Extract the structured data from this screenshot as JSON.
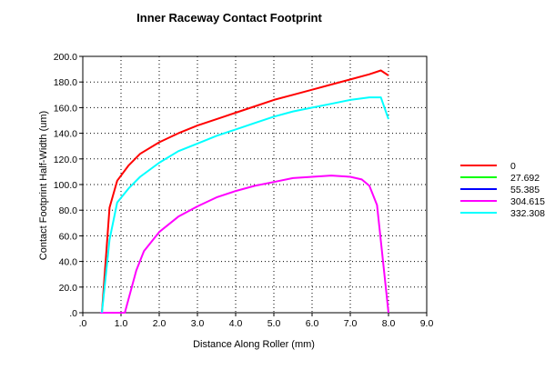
{
  "chart_data": {
    "type": "line",
    "title": "Inner Raceway Contact Footprint",
    "xlabel": "Distance Along Roller (mm)",
    "ylabel": "Contact Footprint Half-Width (um)",
    "xlim": [
      0,
      9
    ],
    "ylim": [
      0,
      200
    ],
    "xticks": [
      0,
      1,
      2,
      3,
      4,
      5,
      6,
      7,
      8,
      9
    ],
    "xtick_labels": [
      ".0",
      "1.0",
      "2.0",
      "3.0",
      "4.0",
      "5.0",
      "6.0",
      "7.0",
      "8.0",
      "9.0"
    ],
    "yticks": [
      0,
      20,
      40,
      60,
      80,
      100,
      120,
      140,
      160,
      180,
      200
    ],
    "ytick_labels": [
      ".0",
      "20.0",
      "40.0",
      "60.0",
      "80.0",
      "100.0",
      "120.0",
      "140.0",
      "160.0",
      "180.0",
      "200.0"
    ],
    "grid": true,
    "legend_position": "right",
    "series": [
      {
        "name": "0",
        "color": "#ff0000",
        "x": [
          0.5,
          0.7,
          0.9,
          1.2,
          1.5,
          2.0,
          2.5,
          3.0,
          3.5,
          4.0,
          4.5,
          5.0,
          5.5,
          6.0,
          6.5,
          7.0,
          7.5,
          7.8,
          8.0
        ],
        "y": [
          0,
          82,
          103,
          115,
          124,
          133,
          140,
          146,
          151,
          156,
          161,
          166,
          170,
          174,
          178,
          182,
          186,
          189,
          185
        ]
      },
      {
        "name": "27.692",
        "color": "#00ff00",
        "x": [],
        "y": []
      },
      {
        "name": "55.385",
        "color": "#0000ff",
        "x": [],
        "y": []
      },
      {
        "name": "304.615",
        "color": "#ff00ff",
        "x": [
          0.45,
          1.1,
          1.4,
          1.6,
          2.0,
          2.5,
          3.0,
          3.5,
          4.0,
          4.5,
          5.0,
          5.5,
          6.0,
          6.5,
          7.0,
          7.3,
          7.5,
          7.7,
          8.0
        ],
        "y": [
          0,
          0,
          33,
          48,
          63,
          75,
          83,
          90,
          95,
          99,
          102,
          105,
          106,
          107,
          106,
          104,
          99,
          84,
          0
        ]
      },
      {
        "name": "332.308",
        "color": "#00ffff",
        "x": [
          0.5,
          0.7,
          0.9,
          1.2,
          1.5,
          2.0,
          2.5,
          3.0,
          3.5,
          4.0,
          4.5,
          5.0,
          5.5,
          6.0,
          6.5,
          7.0,
          7.5,
          7.8,
          8.0
        ],
        "y": [
          0,
          57,
          86,
          97,
          106,
          117,
          126,
          132,
          138,
          143,
          148,
          153,
          157,
          160,
          163,
          166,
          168,
          168,
          151
        ]
      }
    ]
  }
}
